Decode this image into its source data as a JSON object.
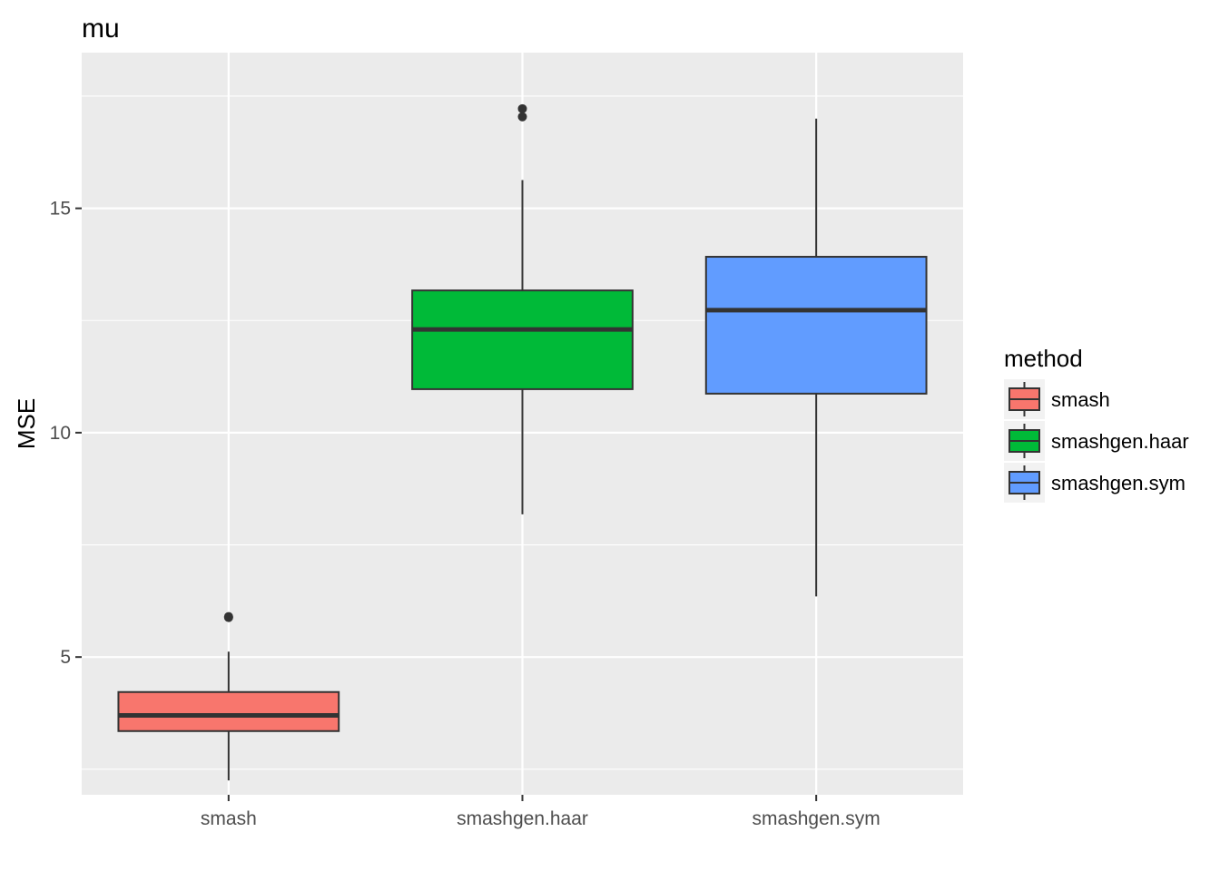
{
  "chart_data": {
    "type": "box",
    "title": "mu",
    "xlabel": "",
    "ylabel": "MSE",
    "ylim": [
      1.93,
      18.47
    ],
    "yticks": [
      5,
      10,
      15
    ],
    "grid": true,
    "legend_title": "method",
    "legend_position": "right",
    "categories": [
      "smash",
      "smashgen.haar",
      "smashgen.sym"
    ],
    "series": [
      {
        "name": "smash",
        "color": "#F8766D",
        "whisker_low": 2.25,
        "q1": 3.35,
        "median": 3.7,
        "q3": 4.22,
        "whisker_high": 5.12,
        "outliers": [
          5.88,
          5.9
        ]
      },
      {
        "name": "smashgen.haar",
        "color": "#00BA38",
        "whisker_low": 8.18,
        "q1": 10.97,
        "median": 12.3,
        "q3": 13.17,
        "whisker_high": 15.63,
        "outliers": [
          17.04,
          17.22
        ]
      },
      {
        "name": "smashgen.sym",
        "color": "#619CFF",
        "whisker_low": 6.35,
        "q1": 10.87,
        "median": 12.73,
        "q3": 13.92,
        "whisker_high": 17.0,
        "outliers": []
      }
    ]
  }
}
